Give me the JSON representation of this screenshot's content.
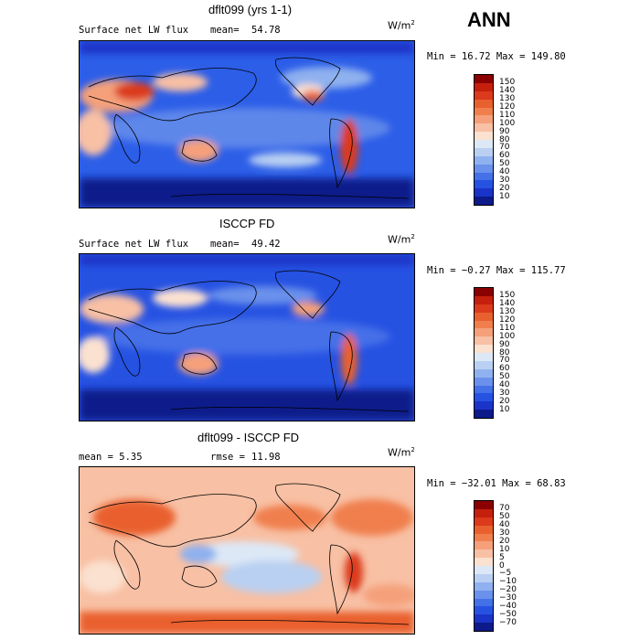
{
  "season": "ANN",
  "panels": [
    {
      "title": "dflt099 (yrs 1-1)",
      "left_label": "Surface net LW flux",
      "stat_label": "mean=",
      "stat_value": "54.78",
      "units": "W/m",
      "units_exp": "2",
      "minmax": "Min =  16.72 Max = 149.80",
      "colorbar": {
        "labels": [
          "150",
          "140",
          "130",
          "120",
          "110",
          "100",
          "90",
          "80",
          "70",
          "60",
          "50",
          "40",
          "30",
          "20",
          "10"
        ],
        "colors": [
          "#8b0000",
          "#c4200d",
          "#db3a1c",
          "#e9602f",
          "#f07f4d",
          "#f5a07a",
          "#f8c0a4",
          "#fbe1d0",
          "#dde8f6",
          "#b9d0f2",
          "#8fb1ef",
          "#6a91eb",
          "#4470e8",
          "#2652e2",
          "#1a34c8",
          "#0c1a8a"
        ]
      }
    },
    {
      "title": "ISCCP FD",
      "left_label": "Surface net LW flux",
      "stat_label": "mean=",
      "stat_value": "49.42",
      "units": "W/m",
      "units_exp": "2",
      "minmax": "Min =  −0.27 Max = 115.77",
      "colorbar": {
        "labels": [
          "150",
          "140",
          "130",
          "120",
          "110",
          "100",
          "90",
          "80",
          "70",
          "60",
          "50",
          "40",
          "30",
          "20",
          "10"
        ],
        "colors": [
          "#8b0000",
          "#c4200d",
          "#db3a1c",
          "#e9602f",
          "#f07f4d",
          "#f5a07a",
          "#f8c0a4",
          "#fbe1d0",
          "#dde8f6",
          "#b9d0f2",
          "#8fb1ef",
          "#6a91eb",
          "#4470e8",
          "#2652e2",
          "#1a34c8",
          "#0c1a8a"
        ]
      }
    },
    {
      "title": "dflt099 - ISCCP FD",
      "left_label": "mean =    5.35",
      "stat_label": "rmse =",
      "stat_value": "11.98",
      "units": "W/m",
      "units_exp": "2",
      "minmax": "Min = −32.01 Max =  68.83",
      "colorbar": {
        "labels": [
          "70",
          "50",
          "40",
          "30",
          "20",
          "10",
          "5",
          "0",
          "−5",
          "−10",
          "−20",
          "−30",
          "−40",
          "−50",
          "−70"
        ],
        "colors": [
          "#8b0000",
          "#c4200d",
          "#db3a1c",
          "#e9602f",
          "#f07f4d",
          "#f5a07a",
          "#f8c0a4",
          "#fbe1d0",
          "#dde8f6",
          "#b9d0f2",
          "#8fb1ef",
          "#6a91eb",
          "#4470e8",
          "#2652e2",
          "#1a34c8",
          "#0c1a8a"
        ]
      }
    }
  ],
  "chart_data": [
    {
      "type": "heatmap",
      "title": "dflt099 (yrs 1-1)",
      "variable": "Surface net LW flux",
      "units": "W/m2",
      "mean": 54.78,
      "min": 16.72,
      "max": 149.8,
      "contour_levels": [
        10,
        20,
        30,
        40,
        50,
        60,
        70,
        80,
        90,
        100,
        110,
        120,
        130,
        140,
        150
      ]
    },
    {
      "type": "heatmap",
      "title": "ISCCP FD",
      "variable": "Surface net LW flux",
      "units": "W/m2",
      "mean": 49.42,
      "min": -0.27,
      "max": 115.77,
      "contour_levels": [
        10,
        20,
        30,
        40,
        50,
        60,
        70,
        80,
        90,
        100,
        110,
        120,
        130,
        140,
        150
      ]
    },
    {
      "type": "heatmap",
      "title": "dflt099 - ISCCP FD",
      "units": "W/m2",
      "mean": 5.35,
      "rmse": 11.98,
      "min": -32.01,
      "max": 68.83,
      "contour_levels": [
        -70,
        -50,
        -40,
        -30,
        -20,
        -10,
        -5,
        0,
        5,
        10,
        20,
        30,
        40,
        50,
        70
      ]
    }
  ]
}
